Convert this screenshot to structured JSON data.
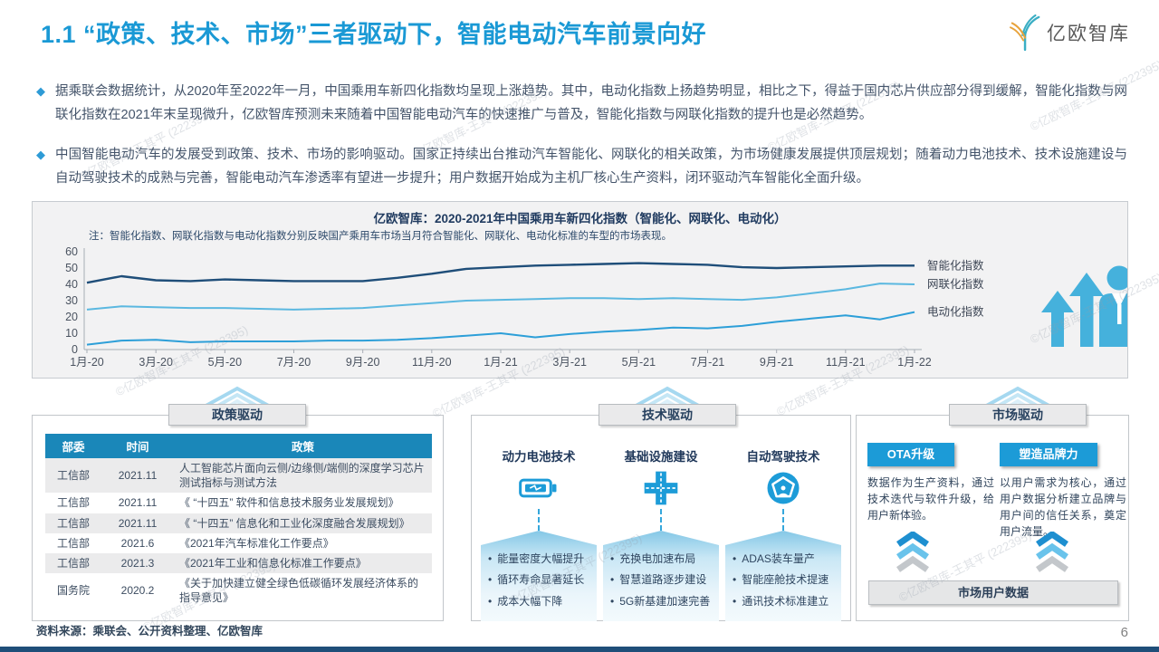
{
  "header": {
    "title": "1.1 “政策、技术、市场”三者驱动下，智能电动汽车前景向好",
    "logo_text": "亿欧智库"
  },
  "bullets": [
    "据乘联会数据统计，从2020年至2022年一月，中国乘用车新四化指数均呈现上涨趋势。其中，电动化指数上扬趋势明显，相比之下，得益于国内芯片供应部分得到缓解，智能化指数与网联化指数在2021年末呈现微升，亿欧智库预测未来随着中国智能电动汽车的快速推广与普及，智能化指数与网联化指数的提升也是必然趋势。",
    "中国智能电动汽车的发展受到政策、技术、市场的影响驱动。国家正持续出台推动汽车智能化、网联化的相关政策，为市场健康发展提供顶层规划；随着动力电池技术、技术设施建设与自动驾驶技术的成熟与完善，智能电动汽车渗透率有望进一步提升；用户数据开始成为主机厂核心生产资料，闭环驱动汽车智能化全面升级。"
  ],
  "chart_data": {
    "type": "line",
    "title": "亿欧智库：2020-2021年中国乘用车新四化指数（智能化、网联化、电动化）",
    "note": "注：智能化指数、网联化指数与电动化指数分别反映国产乘用车市场当月符合智能化、网联化、电动化标准的车型的市场表现。",
    "x_tick_labels": [
      "1月-20",
      "3月-20",
      "5月-20",
      "7月-20",
      "9月-20",
      "11月-20",
      "1月-21",
      "3月-21",
      "5月-21",
      "7月-21",
      "9月-21",
      "11月-21",
      "1月-22"
    ],
    "ylim": [
      0,
      60
    ],
    "yticks": [
      0,
      10,
      20,
      30,
      40,
      50,
      60
    ],
    "grid": false,
    "legend_position": "right",
    "series": [
      {
        "name": "智能化指数",
        "color": "#1F4E79",
        "values": [
          41,
          45,
          42.5,
          42,
          43,
          42.5,
          42,
          42,
          42,
          44,
          46.5,
          49.5,
          50.5,
          51.5,
          52,
          52.5,
          53,
          52.5,
          52,
          50.5,
          50,
          50.5,
          51,
          51.5,
          51.5
        ]
      },
      {
        "name": "网联化指数",
        "color": "#5BB8E0",
        "values": [
          24.5,
          26.5,
          26,
          25.5,
          25.5,
          25,
          24.5,
          25,
          25.5,
          27,
          28.5,
          30,
          30.5,
          31,
          31.5,
          31.5,
          31,
          31.5,
          31,
          30.5,
          32,
          34.5,
          37,
          40.5,
          40
        ]
      },
      {
        "name": "电动化指数",
        "color": "#2D9FD8",
        "values": [
          3,
          5.5,
          6,
          4.5,
          5,
          5,
          5,
          5.5,
          5.5,
          6,
          7,
          8.5,
          10,
          7.5,
          9.5,
          11,
          12,
          13.5,
          13,
          14.5,
          17,
          19,
          21,
          18.5,
          23
        ]
      }
    ]
  },
  "drivers": {
    "policy": {
      "tab_label": "政策驱动",
      "table": {
        "headers": [
          "部委",
          "时间",
          "政策"
        ],
        "rows": [
          {
            "cells": [
              "工信部",
              "2021.11",
              "人工智能芯片面向云侧/边缘侧/端侧的深度学习芯片测试指标与测试方法"
            ]
          },
          {
            "cells": [
              "工信部",
              "2021.11",
              "《 “十四五” 软件和信息技术服务业发展规划》"
            ]
          },
          {
            "cells": [
              "工信部",
              "2021.11",
              "《 “十四五” 信息化和工业化深度融合发展规划》"
            ]
          },
          {
            "cells": [
              "工信部",
              "2021.6",
              "《2021年汽车标准化工作要点》"
            ]
          },
          {
            "cells": [
              "工信部",
              "2021.3",
              "《2021年工业和信息化标准工作要点》"
            ]
          },
          {
            "cells": [
              "国务院",
              "2020.2",
              "《关于加快建立健全绿色低碳循环发展经济体系的指导意见》"
            ]
          }
        ]
      }
    },
    "tech": {
      "tab_label": "技术驱动",
      "columns": [
        {
          "title": "动力电池技术",
          "icon": "battery-icon",
          "bullets": [
            "能量密度大幅提升",
            "循环寿命显著延长",
            "成本大幅下降"
          ]
        },
        {
          "title": "基础设施建设",
          "icon": "road-cross-icon",
          "bullets": [
            "充换电加速布局",
            "智慧道路逐步建设",
            "5G新基建加速完善"
          ]
        },
        {
          "title": "自动驾驶技术",
          "icon": "steering-wheel-icon",
          "bullets": [
            "ADAS装车量产",
            "智能座舱技术提速",
            "通讯技术标准建立"
          ]
        }
      ]
    },
    "market": {
      "tab_label": "市场驱动",
      "items": [
        {
          "button": "OTA升级",
          "text": "数据作为生产资料，通过技术迭代与软件升级，给用户新体验。"
        },
        {
          "button": "塑造品牌力",
          "text": "以用户需求为核心，通过用户数据分析建立品牌与用户间的信任关系，奠定用户流量。"
        }
      ],
      "bottom_bar": "市场用户数据"
    }
  },
  "footer": {
    "source": "资料来源：乘联会、公开资料整理、亿欧智库",
    "page_number": "6"
  },
  "watermark": "©亿欧智库-王其平 (222395)",
  "colors": {
    "title_blue": "#1A99D5",
    "table_header_blue": "#1A87B9",
    "accent_blue": "#1C9BD7",
    "dark_navy": "#1F4E79",
    "light_blue_icon": "#45B1DC"
  }
}
